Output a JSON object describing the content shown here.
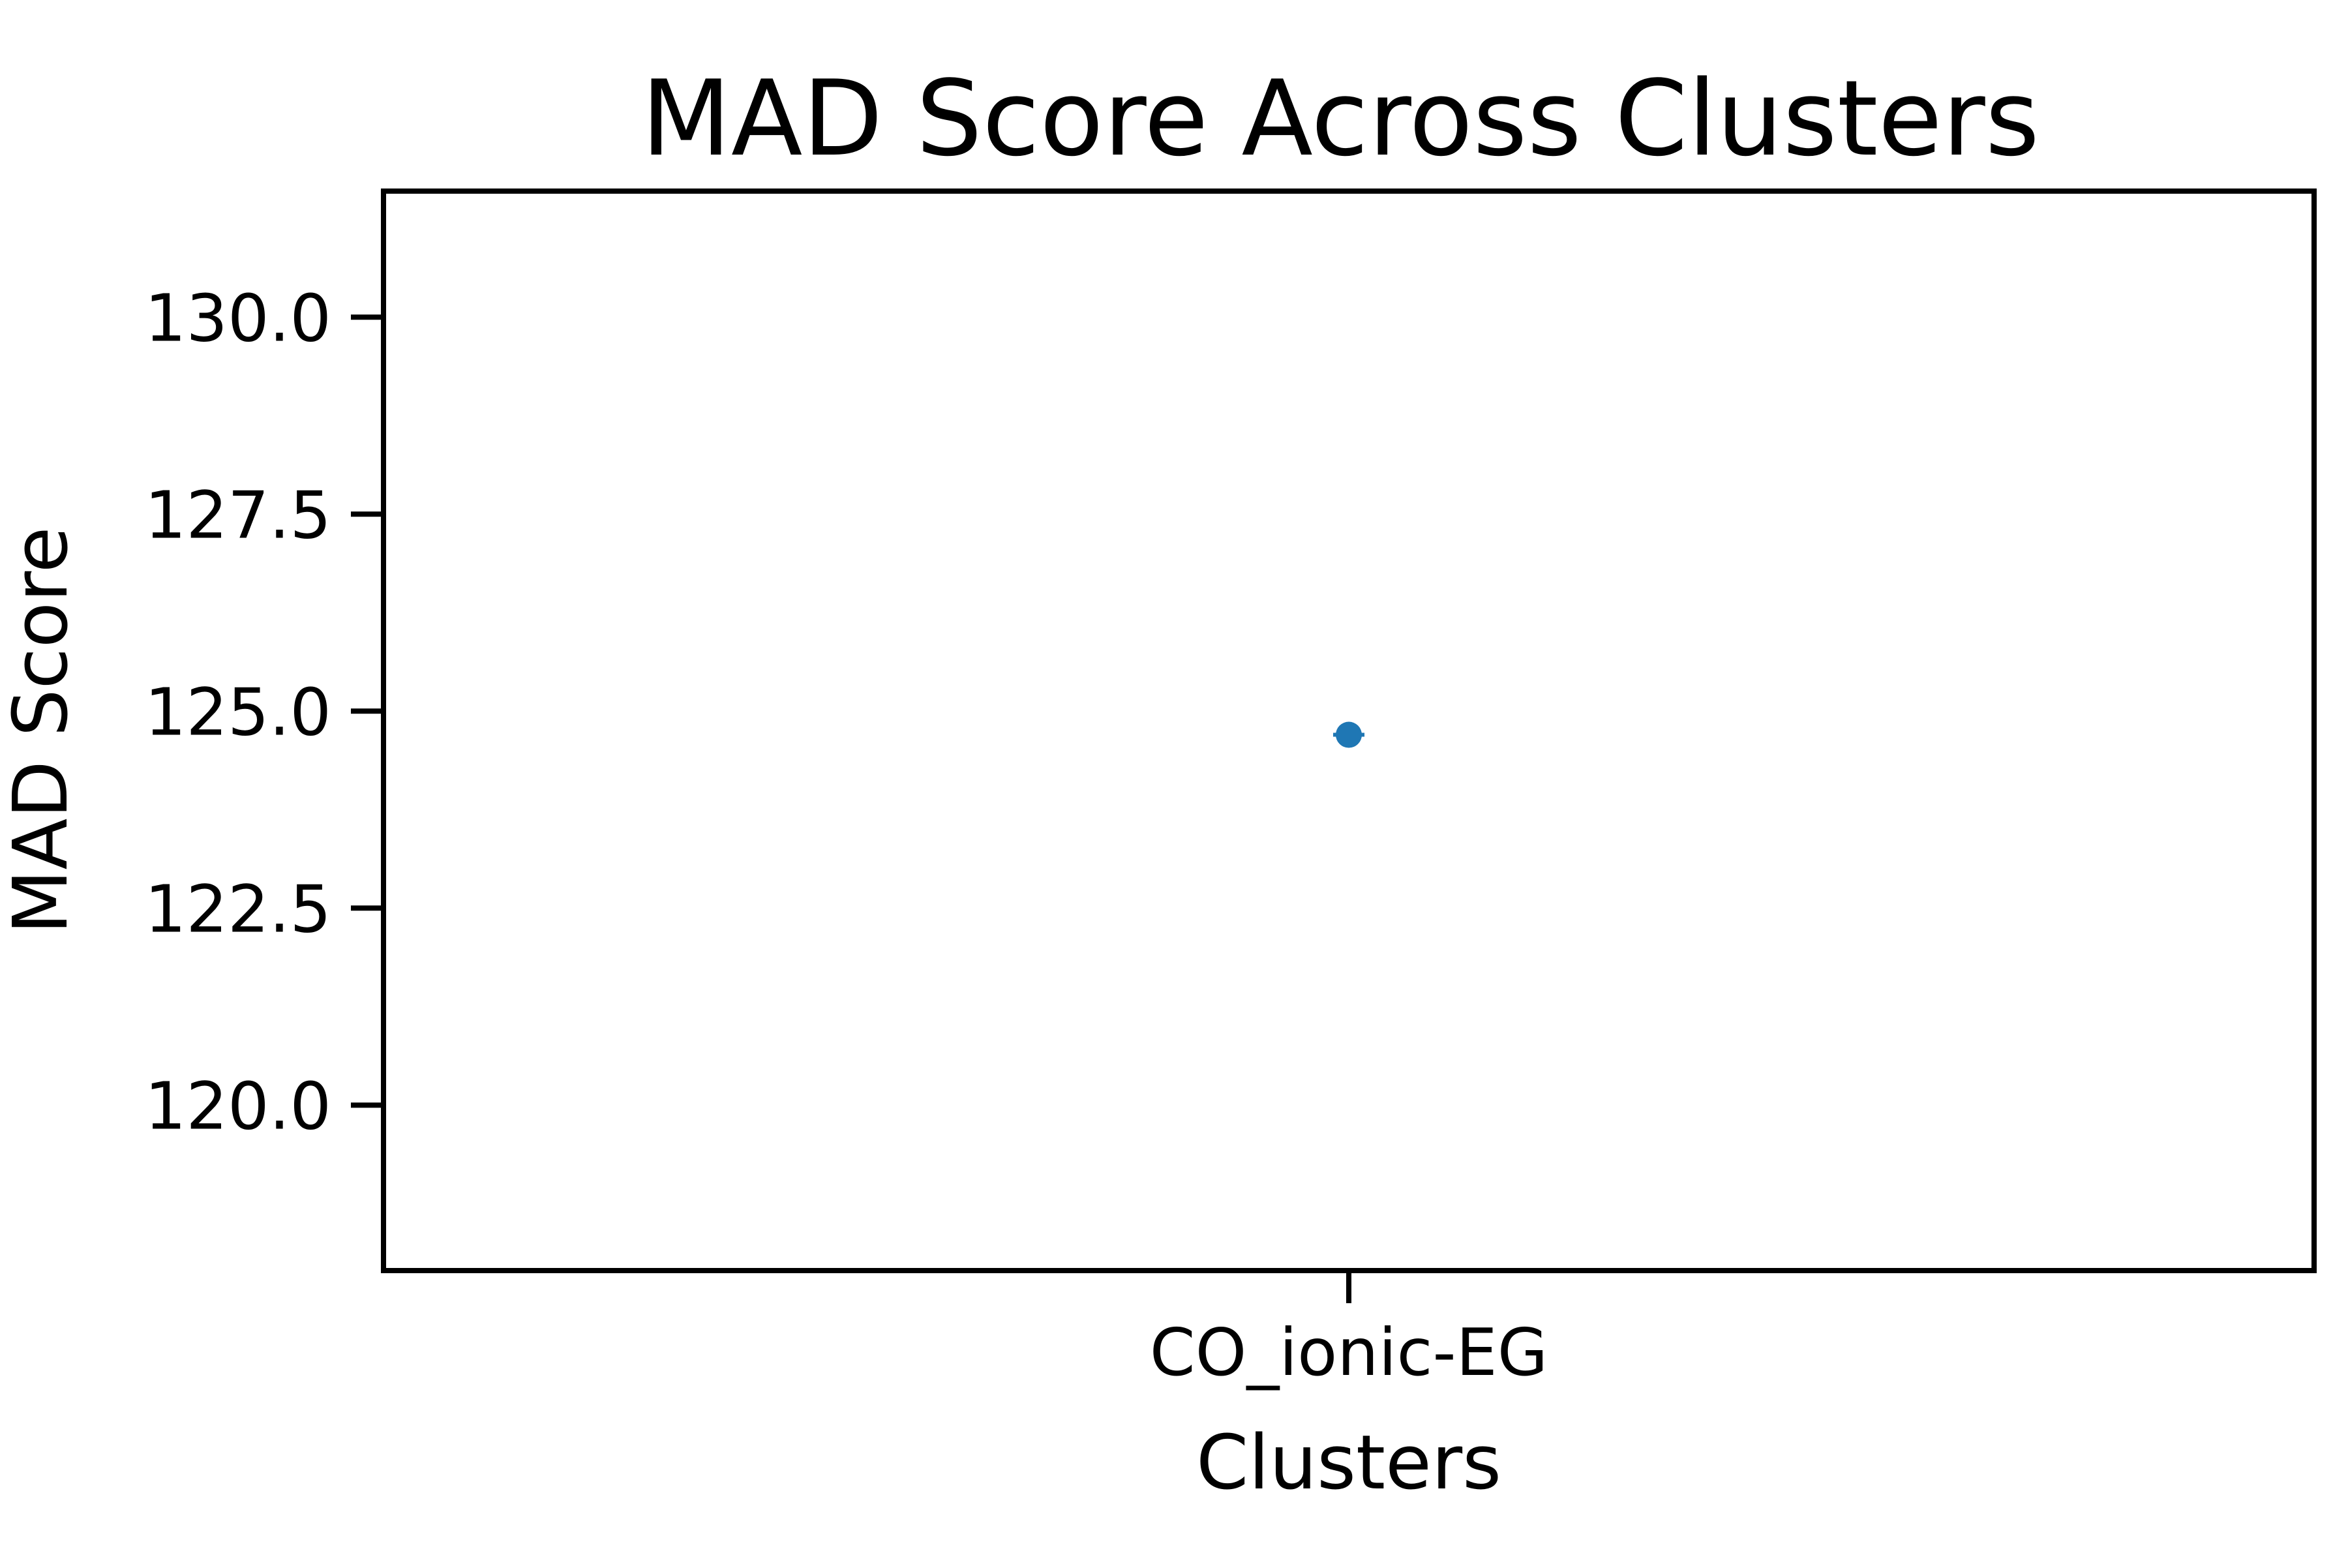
{
  "chart_data": {
    "type": "scatter",
    "title": "MAD Score Across Clusters",
    "xlabel": "Clusters",
    "ylabel": "MAD Score",
    "categories": [
      "CO_ionic-EG"
    ],
    "values": [
      124.7
    ],
    "ylim": [
      117.9,
      131.6
    ],
    "yticks": [
      120.0,
      122.5,
      125.0,
      127.5,
      130.0
    ],
    "ytick_labels": [
      "120.0",
      "122.5",
      "125.0",
      "127.5",
      "130.0"
    ],
    "grid": false,
    "legend": "none",
    "colors": {
      "marker": "#1f77b4",
      "axes": "#000000",
      "background": "#ffffff"
    }
  }
}
